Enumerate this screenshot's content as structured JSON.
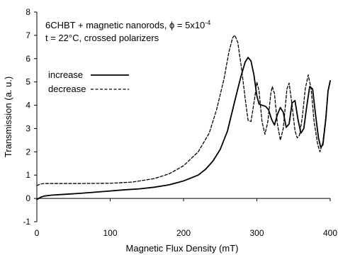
{
  "chart_data": {
    "type": "line",
    "annotation": {
      "line1_prefix": "6CHBT + magnetic nanorods, ϕ = 5x10",
      "line1_exponent": "-4",
      "line2": "t = 22°C, crossed polarizers"
    },
    "xlabel": "Magnetic Flux Density (mT)",
    "ylabel": "Transmission (a. u.)",
    "xlim": [
      0,
      400
    ],
    "ylim": [
      -1,
      8
    ],
    "x_ticks": [
      0,
      100,
      200,
      300,
      400
    ],
    "y_ticks": [
      -1,
      0,
      1,
      2,
      3,
      4,
      5,
      6,
      7,
      8
    ],
    "grid": false,
    "legend_position": "middle-left",
    "series": [
      {
        "name": "increase",
        "style": "solid",
        "color": "#000000",
        "points": [
          [
            0,
            -0.05
          ],
          [
            5,
            0.05
          ],
          [
            10,
            0.1
          ],
          [
            20,
            0.14
          ],
          [
            40,
            0.18
          ],
          [
            60,
            0.22
          ],
          [
            80,
            0.27
          ],
          [
            100,
            0.32
          ],
          [
            120,
            0.37
          ],
          [
            140,
            0.41
          ],
          [
            160,
            0.48
          ],
          [
            180,
            0.58
          ],
          [
            200,
            0.75
          ],
          [
            220,
            1.0
          ],
          [
            230,
            1.25
          ],
          [
            240,
            1.6
          ],
          [
            250,
            2.1
          ],
          [
            260,
            2.9
          ],
          [
            270,
            4.2
          ],
          [
            278,
            5.2
          ],
          [
            284,
            5.85
          ],
          [
            288,
            6.05
          ],
          [
            292,
            5.9
          ],
          [
            296,
            5.3
          ],
          [
            300,
            4.4
          ],
          [
            303,
            4.05
          ],
          [
            307,
            4.0
          ],
          [
            312,
            3.95
          ],
          [
            316,
            3.8
          ],
          [
            320,
            3.4
          ],
          [
            324,
            3.15
          ],
          [
            328,
            3.6
          ],
          [
            332,
            3.9
          ],
          [
            336,
            3.7
          ],
          [
            340,
            3.05
          ],
          [
            344,
            3.2
          ],
          [
            348,
            4.1
          ],
          [
            352,
            4.2
          ],
          [
            356,
            3.4
          ],
          [
            360,
            2.8
          ],
          [
            364,
            3.0
          ],
          [
            368,
            3.95
          ],
          [
            372,
            4.8
          ],
          [
            376,
            4.7
          ],
          [
            380,
            3.6
          ],
          [
            384,
            2.6
          ],
          [
            387,
            2.2
          ],
          [
            390,
            2.3
          ],
          [
            394,
            3.4
          ],
          [
            397,
            4.6
          ],
          [
            400,
            5.05
          ]
        ]
      },
      {
        "name": "decrease",
        "style": "dashed",
        "color": "#000000",
        "points": [
          [
            0,
            0.55
          ],
          [
            5,
            0.62
          ],
          [
            10,
            0.64
          ],
          [
            30,
            0.64
          ],
          [
            60,
            0.64
          ],
          [
            100,
            0.65
          ],
          [
            130,
            0.7
          ],
          [
            160,
            0.85
          ],
          [
            180,
            1.05
          ],
          [
            200,
            1.4
          ],
          [
            220,
            2.0
          ],
          [
            235,
            2.8
          ],
          [
            245,
            3.8
          ],
          [
            255,
            5.1
          ],
          [
            262,
            6.3
          ],
          [
            267,
            6.9
          ],
          [
            270,
            7.0
          ],
          [
            274,
            6.7
          ],
          [
            279,
            5.6
          ],
          [
            284,
            4.3
          ],
          [
            288,
            3.35
          ],
          [
            292,
            3.3
          ],
          [
            297,
            4.3
          ],
          [
            300,
            5.0
          ],
          [
            303,
            4.6
          ],
          [
            307,
            3.3
          ],
          [
            311,
            2.75
          ],
          [
            315,
            3.3
          ],
          [
            319,
            4.5
          ],
          [
            321,
            4.8
          ],
          [
            324,
            4.5
          ],
          [
            328,
            3.2
          ],
          [
            332,
            2.5
          ],
          [
            336,
            3.0
          ],
          [
            341,
            4.7
          ],
          [
            344,
            4.95
          ],
          [
            348,
            4.0
          ],
          [
            352,
            2.9
          ],
          [
            355,
            2.6
          ],
          [
            358,
            2.7
          ],
          [
            362,
            3.5
          ],
          [
            366,
            4.7
          ],
          [
            370,
            5.3
          ],
          [
            374,
            4.7
          ],
          [
            378,
            3.3
          ],
          [
            383,
            2.3
          ],
          [
            386,
            2.0
          ],
          [
            390,
            2.4
          ],
          [
            394,
            3.5
          ],
          [
            397,
            4.6
          ],
          [
            400,
            5.0
          ]
        ]
      }
    ]
  }
}
